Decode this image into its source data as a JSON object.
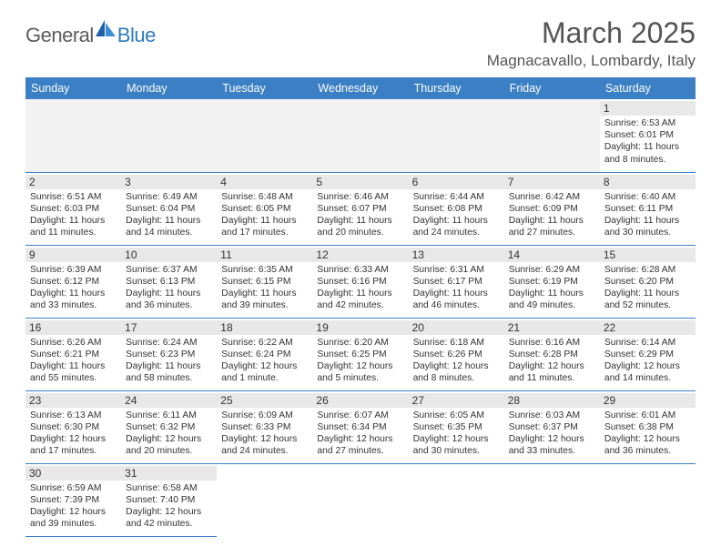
{
  "brand": {
    "part1": "General",
    "part2": "Blue"
  },
  "colors": {
    "header_bg": "#3b7fc4",
    "header_text": "#ffffff",
    "daynum_bg": "#e8e8e8",
    "border": "#3b7fc4",
    "text": "#333333",
    "title": "#555555",
    "logo_gray": "#5c5c5c",
    "logo_blue": "#2b7bbf"
  },
  "title": "March 2025",
  "location": "Magnacavallo, Lombardy, Italy",
  "weekdays": [
    "Sunday",
    "Monday",
    "Tuesday",
    "Wednesday",
    "Thursday",
    "Friday",
    "Saturday"
  ],
  "weeks": [
    [
      null,
      null,
      null,
      null,
      null,
      null,
      {
        "n": "1",
        "sunrise": "6:53 AM",
        "sunset": "6:01 PM",
        "daylight": "11 hours and 8 minutes."
      }
    ],
    [
      {
        "n": "2",
        "sunrise": "6:51 AM",
        "sunset": "6:03 PM",
        "daylight": "11 hours and 11 minutes."
      },
      {
        "n": "3",
        "sunrise": "6:49 AM",
        "sunset": "6:04 PM",
        "daylight": "11 hours and 14 minutes."
      },
      {
        "n": "4",
        "sunrise": "6:48 AM",
        "sunset": "6:05 PM",
        "daylight": "11 hours and 17 minutes."
      },
      {
        "n": "5",
        "sunrise": "6:46 AM",
        "sunset": "6:07 PM",
        "daylight": "11 hours and 20 minutes."
      },
      {
        "n": "6",
        "sunrise": "6:44 AM",
        "sunset": "6:08 PM",
        "daylight": "11 hours and 24 minutes."
      },
      {
        "n": "7",
        "sunrise": "6:42 AM",
        "sunset": "6:09 PM",
        "daylight": "11 hours and 27 minutes."
      },
      {
        "n": "8",
        "sunrise": "6:40 AM",
        "sunset": "6:11 PM",
        "daylight": "11 hours and 30 minutes."
      }
    ],
    [
      {
        "n": "9",
        "sunrise": "6:39 AM",
        "sunset": "6:12 PM",
        "daylight": "11 hours and 33 minutes."
      },
      {
        "n": "10",
        "sunrise": "6:37 AM",
        "sunset": "6:13 PM",
        "daylight": "11 hours and 36 minutes."
      },
      {
        "n": "11",
        "sunrise": "6:35 AM",
        "sunset": "6:15 PM",
        "daylight": "11 hours and 39 minutes."
      },
      {
        "n": "12",
        "sunrise": "6:33 AM",
        "sunset": "6:16 PM",
        "daylight": "11 hours and 42 minutes."
      },
      {
        "n": "13",
        "sunrise": "6:31 AM",
        "sunset": "6:17 PM",
        "daylight": "11 hours and 46 minutes."
      },
      {
        "n": "14",
        "sunrise": "6:29 AM",
        "sunset": "6:19 PM",
        "daylight": "11 hours and 49 minutes."
      },
      {
        "n": "15",
        "sunrise": "6:28 AM",
        "sunset": "6:20 PM",
        "daylight": "11 hours and 52 minutes."
      }
    ],
    [
      {
        "n": "16",
        "sunrise": "6:26 AM",
        "sunset": "6:21 PM",
        "daylight": "11 hours and 55 minutes."
      },
      {
        "n": "17",
        "sunrise": "6:24 AM",
        "sunset": "6:23 PM",
        "daylight": "11 hours and 58 minutes."
      },
      {
        "n": "18",
        "sunrise": "6:22 AM",
        "sunset": "6:24 PM",
        "daylight": "12 hours and 1 minute."
      },
      {
        "n": "19",
        "sunrise": "6:20 AM",
        "sunset": "6:25 PM",
        "daylight": "12 hours and 5 minutes."
      },
      {
        "n": "20",
        "sunrise": "6:18 AM",
        "sunset": "6:26 PM",
        "daylight": "12 hours and 8 minutes."
      },
      {
        "n": "21",
        "sunrise": "6:16 AM",
        "sunset": "6:28 PM",
        "daylight": "12 hours and 11 minutes."
      },
      {
        "n": "22",
        "sunrise": "6:14 AM",
        "sunset": "6:29 PM",
        "daylight": "12 hours and 14 minutes."
      }
    ],
    [
      {
        "n": "23",
        "sunrise": "6:13 AM",
        "sunset": "6:30 PM",
        "daylight": "12 hours and 17 minutes."
      },
      {
        "n": "24",
        "sunrise": "6:11 AM",
        "sunset": "6:32 PM",
        "daylight": "12 hours and 20 minutes."
      },
      {
        "n": "25",
        "sunrise": "6:09 AM",
        "sunset": "6:33 PM",
        "daylight": "12 hours and 24 minutes."
      },
      {
        "n": "26",
        "sunrise": "6:07 AM",
        "sunset": "6:34 PM",
        "daylight": "12 hours and 27 minutes."
      },
      {
        "n": "27",
        "sunrise": "6:05 AM",
        "sunset": "6:35 PM",
        "daylight": "12 hours and 30 minutes."
      },
      {
        "n": "28",
        "sunrise": "6:03 AM",
        "sunset": "6:37 PM",
        "daylight": "12 hours and 33 minutes."
      },
      {
        "n": "29",
        "sunrise": "6:01 AM",
        "sunset": "6:38 PM",
        "daylight": "12 hours and 36 minutes."
      }
    ],
    [
      {
        "n": "30",
        "sunrise": "6:59 AM",
        "sunset": "7:39 PM",
        "daylight": "12 hours and 39 minutes."
      },
      {
        "n": "31",
        "sunrise": "6:58 AM",
        "sunset": "7:40 PM",
        "daylight": "12 hours and 42 minutes."
      },
      null,
      null,
      null,
      null,
      null
    ]
  ],
  "labels": {
    "sunrise": "Sunrise:",
    "sunset": "Sunset:",
    "daylight": "Daylight:"
  }
}
